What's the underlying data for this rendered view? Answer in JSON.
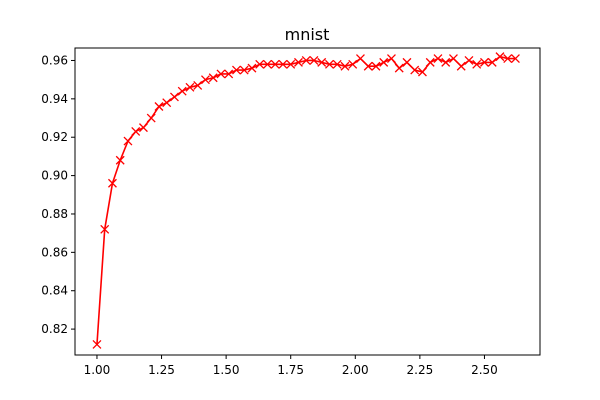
{
  "chart_data": {
    "type": "line",
    "title": "mnist",
    "xlabel": "",
    "ylabel": "",
    "xlim": [
      0.915,
      2.715
    ],
    "ylim": [
      0.8065,
      0.9665
    ],
    "xticks": [
      1.0,
      1.25,
      1.5,
      1.75,
      2.0,
      2.25,
      2.5
    ],
    "xtick_labels": [
      "1.00",
      "1.25",
      "1.50",
      "1.75",
      "2.00",
      "2.25",
      "2.50"
    ],
    "yticks": [
      0.82,
      0.84,
      0.86,
      0.88,
      0.9,
      0.92,
      0.94,
      0.96
    ],
    "ytick_labels": [
      "0.82",
      "0.84",
      "0.86",
      "0.88",
      "0.90",
      "0.92",
      "0.94",
      "0.96"
    ],
    "grid": false,
    "series": [
      {
        "color": "#ff0000",
        "marker": "x",
        "x": [
          1.0,
          1.03,
          1.06,
          1.09,
          1.12,
          1.15,
          1.18,
          1.21,
          1.24,
          1.27,
          1.3,
          1.33,
          1.36,
          1.39,
          1.42,
          1.45,
          1.48,
          1.51,
          1.54,
          1.57,
          1.6,
          1.63,
          1.66,
          1.69,
          1.72,
          1.75,
          1.78,
          1.81,
          1.84,
          1.87,
          1.9,
          1.93,
          1.96,
          1.99,
          2.02,
          2.05,
          2.08,
          2.11,
          2.14,
          2.17,
          2.2,
          2.23,
          2.26,
          2.29,
          2.32,
          2.35,
          2.38,
          2.41,
          2.44,
          2.47,
          2.5,
          2.53,
          2.56,
          2.59,
          2.62
        ],
        "y": [
          0.812,
          0.872,
          0.896,
          0.908,
          0.918,
          0.923,
          0.925,
          0.93,
          0.936,
          0.938,
          0.941,
          0.944,
          0.946,
          0.947,
          0.95,
          0.951,
          0.953,
          0.953,
          0.955,
          0.955,
          0.956,
          0.958,
          0.958,
          0.958,
          0.958,
          0.958,
          0.959,
          0.96,
          0.96,
          0.959,
          0.958,
          0.958,
          0.957,
          0.958,
          0.961,
          0.957,
          0.957,
          0.959,
          0.961,
          0.956,
          0.959,
          0.955,
          0.954,
          0.959,
          0.961,
          0.959,
          0.961,
          0.957,
          0.96,
          0.958,
          0.959,
          0.959,
          0.962,
          0.961,
          0.961
        ]
      }
    ]
  }
}
